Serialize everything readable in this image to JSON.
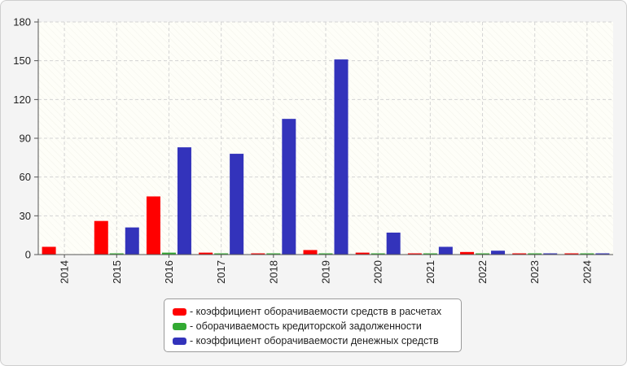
{
  "chart_data": {
    "type": "bar",
    "categories": [
      "2014",
      "2015",
      "2016",
      "2017",
      "2018",
      "2019",
      "2020",
      "2021",
      "2022",
      "2023",
      "2024"
    ],
    "series": [
      {
        "name": "- коэффициент оборачиваемости средств в расчетах",
        "color": "#ff0000",
        "values": [
          6,
          26,
          45,
          1.5,
          0.8,
          3.5,
          1.5,
          0.8,
          2,
          0.8,
          0.8
        ]
      },
      {
        "name": "- оборачиваемость кредиторской задолженности",
        "color": "#33aa33",
        "values": [
          0,
          0.5,
          1.5,
          0.5,
          0.5,
          0.5,
          0.5,
          0.5,
          0.5,
          0.5,
          0.5
        ]
      },
      {
        "name": "- коэффициент оборачиваемости денежных средств",
        "color": "#3333bb",
        "values": [
          0,
          21,
          83,
          78,
          105,
          151,
          17,
          6,
          3,
          0.8,
          0.8
        ]
      }
    ],
    "yticks": [
      0,
      30,
      60,
      90,
      120,
      150,
      180
    ],
    "ylim": [
      0,
      180
    ],
    "grid": true,
    "legend_position": "bottom-center"
  }
}
